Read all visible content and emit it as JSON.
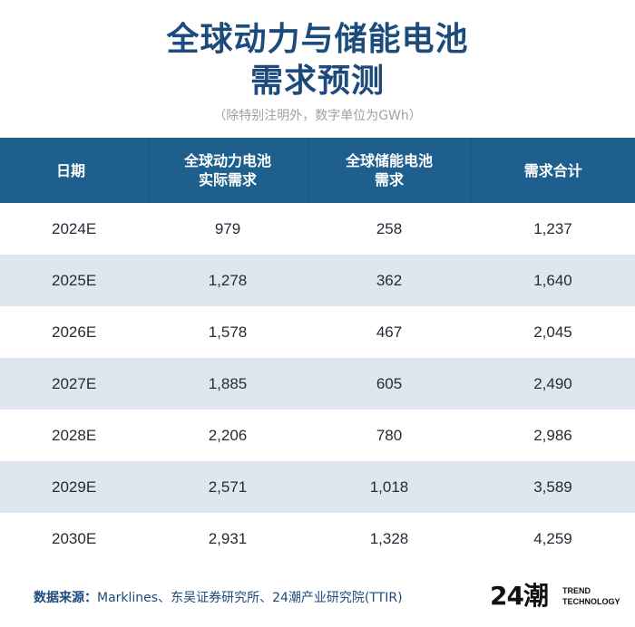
{
  "title_line1": "全球动力与储能电池",
  "title_line2": "需求预测",
  "subtitle": "（除特别注明外，数字单位为GWh）",
  "chart_data": {
    "type": "table",
    "columns": [
      {
        "line1": "日期",
        "line2": ""
      },
      {
        "line1": "全球动力电池",
        "line2": "实际需求"
      },
      {
        "line1": "全球储能电池",
        "line2": "需求"
      },
      {
        "line1": "需求合计",
        "line2": ""
      }
    ],
    "rows": [
      [
        "2024E",
        "979",
        "258",
        "1,237"
      ],
      [
        "2025E",
        "1,278",
        "362",
        "1,640"
      ],
      [
        "2026E",
        "1,578",
        "467",
        "2,045"
      ],
      [
        "2027E",
        "1,885",
        "605",
        "2,490"
      ],
      [
        "2028E",
        "2,206",
        "780",
        "2,986"
      ],
      [
        "2029E",
        "2,571",
        "1,018",
        "3,589"
      ],
      [
        "2030E",
        "2,931",
        "1,328",
        "4,259"
      ]
    ]
  },
  "footer": {
    "label": "数据来源：",
    "text": "Marklines、东吴证券研究所、24潮产业研究院(TTIR)"
  },
  "logo": {
    "mark": "24潮",
    "line1": "TREND",
    "line2": "TECHNOLOGY"
  }
}
